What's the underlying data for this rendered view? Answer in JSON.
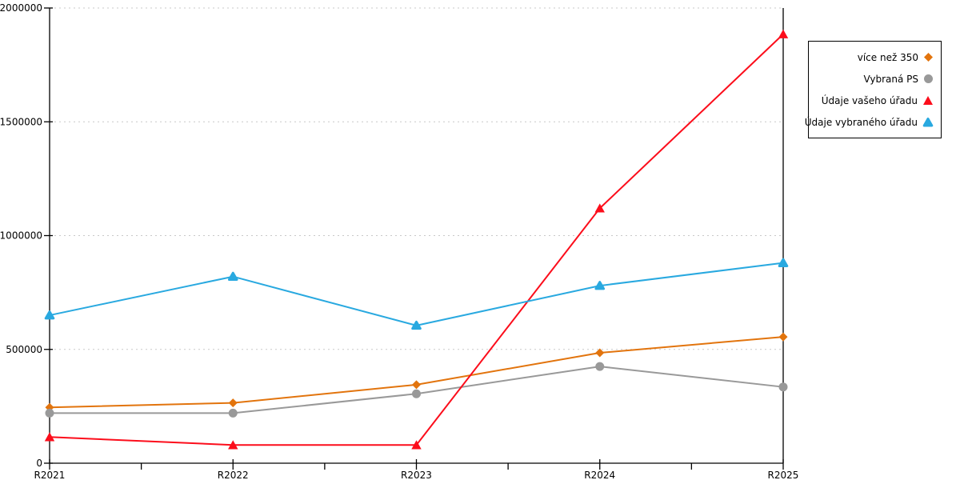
{
  "chart_data": {
    "type": "line",
    "title": "",
    "xlabel": "",
    "ylabel": "",
    "categories": [
      "R2021",
      "R2022",
      "R2023",
      "R2024",
      "R2025"
    ],
    "series": [
      {
        "name": "více než 350",
        "marker": "diamond",
        "color": "#E2740D",
        "values": [
          245000,
          265000,
          345000,
          485000,
          555000
        ]
      },
      {
        "name": "Vybraná PS",
        "marker": "circle",
        "color": "#999999",
        "values": [
          220000,
          220000,
          305000,
          425000,
          335000
        ]
      },
      {
        "name": "Údaje vašeho úřadu",
        "marker": "triangle",
        "color": "#FC0D1B",
        "values": [
          115000,
          80000,
          80000,
          1120000,
          1885000
        ]
      },
      {
        "name": "Údaje vybraného úřadu",
        "marker": "triangle-rounded",
        "color": "#29A9E0",
        "values": [
          650000,
          820000,
          605000,
          780000,
          880000
        ]
      }
    ],
    "ylim": [
      0,
      2000000
    ],
    "yticks": [
      0,
      500000,
      1000000,
      1500000,
      2000000
    ],
    "ytick_labels": [
      "0",
      "500000",
      "1000000",
      "1500000",
      "2000000"
    ],
    "grid": "horizontal-dotted",
    "legend_position": "top-right"
  },
  "colors": {
    "grid": "#C9C9C9",
    "axis": "#000000",
    "text": "#000000",
    "background": "#FFFFFF",
    "legend_border": "#000000"
  }
}
